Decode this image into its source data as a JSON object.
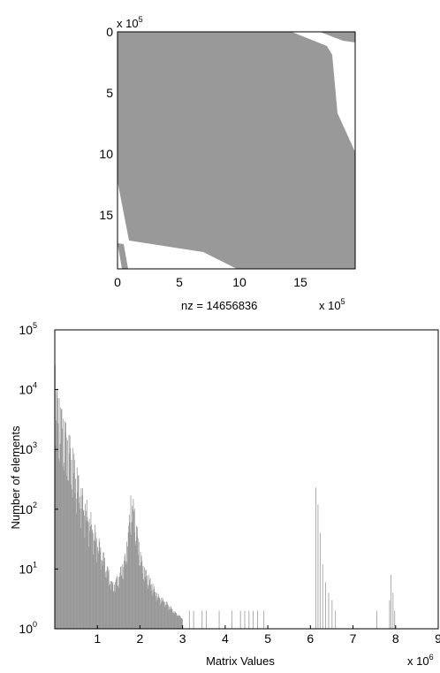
{
  "chart_data": [
    {
      "type": "spy",
      "xlim": [
        0,
        1.95
      ],
      "ylim": [
        0,
        1.95
      ],
      "x_ticks": [
        "0",
        "5",
        "10",
        "15"
      ],
      "y_ticks": [
        "0",
        "5",
        "10",
        "15"
      ],
      "scale_x": {
        "base": "x 10",
        "exp": "5"
      },
      "scale_y": {
        "base": "x 10",
        "exp": "5"
      },
      "xlabel": "nz = 14656836",
      "fill_color": "#999999"
    },
    {
      "type": "bar",
      "xlabel": "Matrix Values",
      "ylabel": "Number of elements",
      "x_scale_label": {
        "base": "x 10",
        "exp": "6"
      },
      "xlim": [
        0,
        9
      ],
      "ylim": [
        1,
        100000
      ],
      "yscale": "log",
      "x_ticks": [
        "1",
        "2",
        "3",
        "4",
        "5",
        "6",
        "7",
        "8",
        "9"
      ],
      "y_ticks": [
        {
          "base": "10",
          "exp": "0"
        },
        {
          "base": "10",
          "exp": "1"
        },
        {
          "base": "10",
          "exp": "2"
        },
        {
          "base": "10",
          "exp": "3"
        },
        {
          "base": "10",
          "exp": "4"
        },
        {
          "base": "10",
          "exp": "5"
        }
      ],
      "bar_color": "#999999",
      "envelope": [
        [
          0.0,
          25000
        ],
        [
          0.05,
          12000
        ],
        [
          0.15,
          7000
        ],
        [
          0.3,
          2500
        ],
        [
          0.45,
          900
        ],
        [
          0.6,
          300
        ],
        [
          0.8,
          110
        ],
        [
          1.0,
          40
        ],
        [
          1.2,
          14
        ],
        [
          1.35,
          6
        ],
        [
          1.5,
          9
        ],
        [
          1.65,
          20
        ],
        [
          1.72,
          60
        ],
        [
          1.78,
          190
        ],
        [
          1.85,
          150
        ],
        [
          1.95,
          40
        ],
        [
          2.05,
          14
        ],
        [
          2.2,
          8
        ],
        [
          2.4,
          4
        ],
        [
          2.6,
          3
        ],
        [
          2.8,
          2
        ],
        [
          3.0,
          1.5
        ]
      ],
      "spikes": [
        [
          3.15,
          2
        ],
        [
          3.25,
          2
        ],
        [
          3.45,
          2
        ],
        [
          3.55,
          2
        ],
        [
          3.85,
          2
        ],
        [
          4.15,
          2
        ],
        [
          4.35,
          2
        ],
        [
          4.45,
          2
        ],
        [
          4.55,
          2
        ],
        [
          4.65,
          2
        ],
        [
          4.75,
          2
        ],
        [
          4.9,
          2
        ],
        [
          6.12,
          230
        ],
        [
          6.17,
          120
        ],
        [
          6.22,
          40
        ],
        [
          6.28,
          12
        ],
        [
          6.35,
          6
        ],
        [
          6.42,
          4
        ],
        [
          6.5,
          3
        ],
        [
          6.58,
          2
        ],
        [
          7.55,
          2
        ],
        [
          7.85,
          3
        ],
        [
          7.88,
          8
        ],
        [
          7.93,
          4
        ],
        [
          7.97,
          2
        ]
      ]
    }
  ]
}
